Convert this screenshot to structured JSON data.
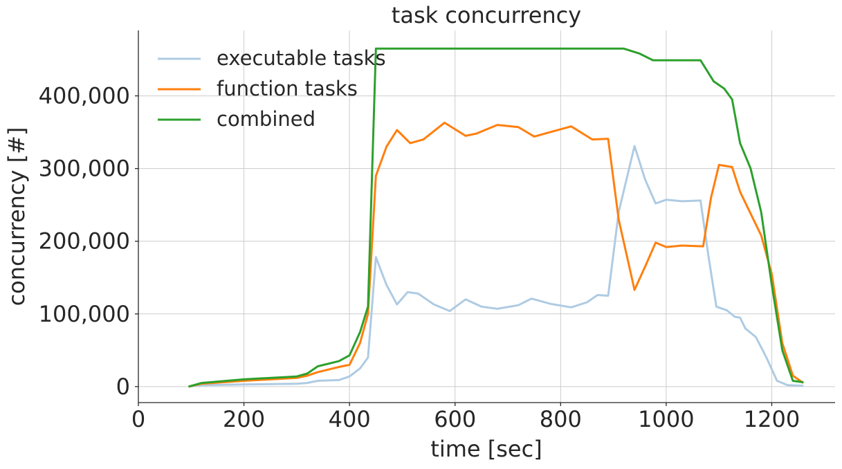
{
  "chart_data": {
    "type": "line",
    "title": "task concurrency",
    "x_label": "time [sec]",
    "y_label": "concurrency [#]",
    "xlim": [
      0,
      1320
    ],
    "xticks": [
      0,
      200,
      400,
      600,
      800,
      1000,
      1200
    ],
    "ylim": [
      -22000,
      490000
    ],
    "yticks": [
      0,
      {
        "value": 100000,
        "label": "100,000"
      },
      {
        "value": 200000,
        "label": "200,000"
      },
      {
        "value": 300000,
        "label": "300,000"
      },
      {
        "value": 400000,
        "label": "400,000"
      }
    ],
    "grid": true,
    "legend": "upper left",
    "series": [
      {
        "name": "executable tasks",
        "color": "#aecbe3",
        "x": [
          95,
          120,
          200,
          300,
          320,
          340,
          380,
          400,
          420,
          435,
          450,
          470,
          490,
          510,
          530,
          560,
          590,
          620,
          650,
          680,
          720,
          745,
          780,
          820,
          850,
          870,
          890,
          910,
          940,
          960,
          980,
          1000,
          1030,
          1065,
          1080,
          1095,
          1115,
          1130,
          1140,
          1150,
          1170,
          1190,
          1210,
          1230,
          1260
        ],
        "values": [
          0,
          2000,
          3000,
          4000,
          5000,
          8000,
          9000,
          14000,
          25000,
          40000,
          178000,
          140000,
          113000,
          130000,
          128000,
          113000,
          104000,
          120000,
          110000,
          107000,
          112000,
          121000,
          114000,
          109000,
          116000,
          126000,
          125000,
          240000,
          331000,
          285000,
          252000,
          257000,
          255000,
          256000,
          180000,
          110000,
          105000,
          96000,
          95000,
          80000,
          68000,
          40000,
          8000,
          2000,
          1000
        ]
      },
      {
        "name": "function tasks",
        "color": "#ff7f0e",
        "x": [
          95,
          120,
          200,
          300,
          320,
          340,
          380,
          400,
          420,
          435,
          450,
          470,
          490,
          515,
          540,
          580,
          620,
          640,
          680,
          720,
          750,
          780,
          820,
          860,
          890,
          910,
          940,
          960,
          980,
          1000,
          1030,
          1070,
          1085,
          1100,
          1125,
          1140,
          1160,
          1180,
          1200,
          1220,
          1240,
          1260
        ],
        "values": [
          0,
          4000,
          8000,
          12000,
          15000,
          20000,
          27000,
          30000,
          60000,
          100000,
          290000,
          330000,
          353000,
          335000,
          340000,
          363000,
          345000,
          348000,
          360000,
          357000,
          344000,
          350000,
          358000,
          340000,
          341000,
          230000,
          133000,
          165000,
          198000,
          192000,
          194000,
          193000,
          260000,
          305000,
          302000,
          268000,
          238000,
          208000,
          155000,
          60000,
          15000,
          5000
        ]
      },
      {
        "name": "combined",
        "color": "#2ca02c",
        "x": [
          95,
          120,
          200,
          300,
          320,
          340,
          380,
          400,
          420,
          435,
          450,
          920,
          950,
          975,
          1065,
          1090,
          1110,
          1125,
          1140,
          1160,
          1180,
          1200,
          1220,
          1240,
          1260
        ],
        "values": [
          0,
          5000,
          10000,
          14000,
          18000,
          28000,
          35000,
          43000,
          75000,
          110000,
          465000,
          465000,
          458000,
          449000,
          449000,
          420000,
          410000,
          395000,
          335000,
          300000,
          240000,
          140000,
          50000,
          8000,
          6000
        ]
      }
    ]
  }
}
